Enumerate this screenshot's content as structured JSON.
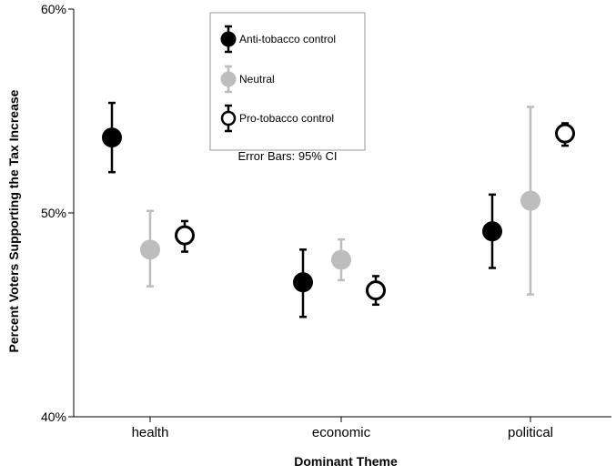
{
  "chart_data": {
    "type": "scatter",
    "subtype": "point-with-error-bars",
    "xlabel": "Dominant Theme",
    "ylabel": "Percent Voters Supporting the Tax Increase",
    "categories": [
      "health",
      "economic",
      "political"
    ],
    "ylim": [
      40,
      60
    ],
    "y_ticks": [
      {
        "value": 40,
        "label": "40%"
      },
      {
        "value": 50,
        "label": "50%"
      },
      {
        "value": 60,
        "label": "60%"
      }
    ],
    "grid": false,
    "legend": {
      "placement": "top-center",
      "note": "Error Bars: 95% CI"
    },
    "series": [
      {
        "name": "Anti-tobacco control",
        "color": "#000000",
        "marker": "filled-circle",
        "values": [
          53.7,
          46.6,
          49.1
        ],
        "ci_low": [
          52.0,
          44.9,
          47.3
        ],
        "ci_high": [
          55.4,
          48.2,
          50.9
        ]
      },
      {
        "name": "Neutral",
        "color": "#bdbdbd",
        "marker": "filled-circle",
        "values": [
          48.2,
          47.7,
          50.6
        ],
        "ci_low": [
          46.4,
          46.7,
          46.0
        ],
        "ci_high": [
          50.1,
          48.7,
          55.2
        ]
      },
      {
        "name": "Pro-tobacco control",
        "color": "#000000",
        "marker": "open-circle",
        "values": [
          48.9,
          46.2,
          53.9
        ],
        "ci_low": [
          48.1,
          45.5,
          53.3
        ],
        "ci_high": [
          49.6,
          46.9,
          54.4
        ]
      }
    ]
  }
}
